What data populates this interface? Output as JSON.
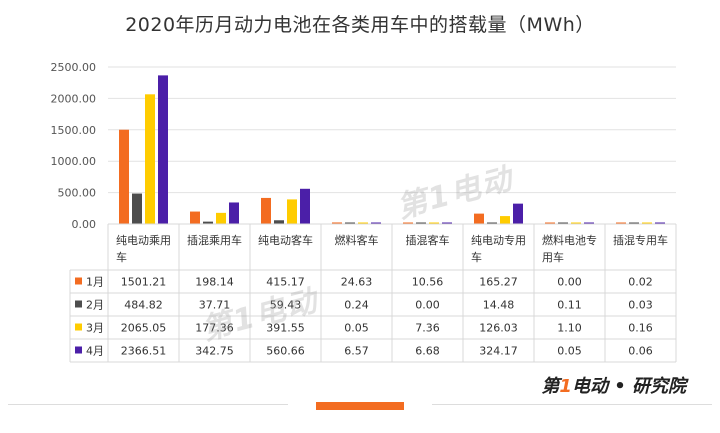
{
  "chart_data": {
    "type": "bar",
    "title": "2020年历月动力电池在各类用车中的搭载量（MWh）",
    "categories": [
      "纯电动乘用车",
      "插混乘用车",
      "纯电动客车",
      "燃料客车",
      "插混客车",
      "纯电动专用车",
      "燃料电池专用车",
      "插混专用车"
    ],
    "category_lines": [
      [
        "纯电动乘用",
        "车"
      ],
      [
        "插混乘用车"
      ],
      [
        "纯电动客车"
      ],
      [
        "燃料客车"
      ],
      [
        "插混客车"
      ],
      [
        "纯电动专用",
        "车"
      ],
      [
        "燃料电池专",
        "用车"
      ],
      [
        "插混专用车"
      ]
    ],
    "series": [
      {
        "name": "1月",
        "color": "#f36c21",
        "values": [
          1501.21,
          198.14,
          415.17,
          24.63,
          10.56,
          165.27,
          0.0,
          0.02
        ],
        "labels": [
          "1501.21",
          "198.14",
          "415.17",
          "24.63",
          "10.56",
          "165.27",
          "0.00",
          "0.02"
        ]
      },
      {
        "name": "2月",
        "color": "#4d4d4d",
        "values": [
          484.82,
          37.71,
          59.43,
          0.24,
          0.0,
          14.48,
          0.11,
          0.03
        ],
        "labels": [
          "484.82",
          "37.71",
          "59.43",
          "0.24",
          "0.00",
          "14.48",
          "0.11",
          "0.03"
        ]
      },
      {
        "name": "3月",
        "color": "#ffcc00",
        "values": [
          2065.05,
          177.36,
          391.55,
          0.05,
          7.36,
          126.03,
          1.1,
          0.16
        ],
        "labels": [
          "2065.05",
          "177.36",
          "391.55",
          "0.05",
          "7.36",
          "126.03",
          "1.10",
          "0.16"
        ]
      },
      {
        "name": "4月",
        "color": "#4b1fa8",
        "values": [
          2366.51,
          342.75,
          560.66,
          6.57,
          6.68,
          324.17,
          0.05,
          0.06
        ],
        "labels": [
          "2366.51",
          "342.75",
          "560.66",
          "6.57",
          "6.68",
          "324.17",
          "0.05",
          "0.06"
        ]
      }
    ],
    "ylim": [
      0,
      2500
    ],
    "yticks": [
      "0.00",
      "500.00",
      "1000.00",
      "1500.00",
      "2000.00",
      "2500.00"
    ],
    "grid": true,
    "legend": "data-table"
  },
  "watermark": "第1电动",
  "footer": {
    "brand_prefix": "第",
    "brand_num": "1",
    "brand_suffix": "电动 • 研究院"
  }
}
